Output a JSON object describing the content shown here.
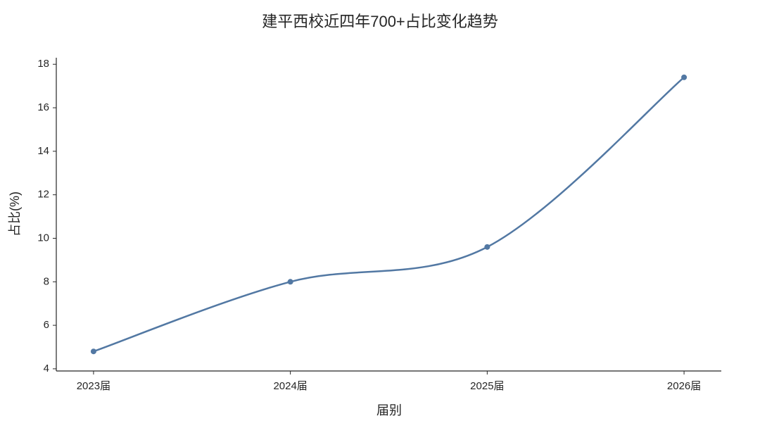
{
  "chart_data": {
    "type": "line",
    "title": "建平西校近四年700+占比变化趋势",
    "x_label": "届别",
    "y_label": "占比(%)",
    "categories": [
      "2023届",
      "2024届",
      "2025届",
      "2026届"
    ],
    "series": [
      {
        "name": "占比",
        "color": "#5278a3",
        "values": [
          4.8,
          8.0,
          9.6,
          17.4
        ]
      }
    ],
    "ylim": [
      3.9,
      18.3
    ],
    "yticks": [
      4,
      6,
      8,
      10,
      12,
      14,
      16,
      18
    ],
    "grid": false,
    "smooth": true
  }
}
